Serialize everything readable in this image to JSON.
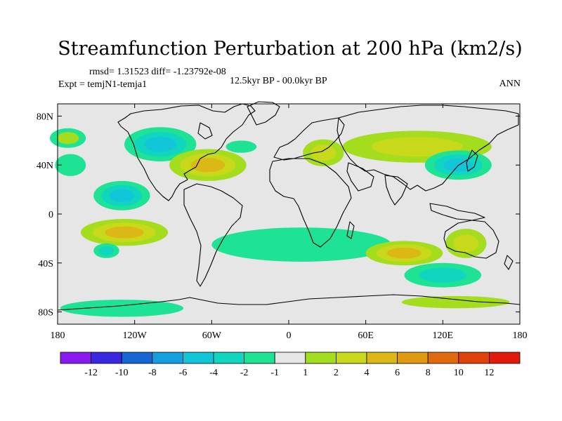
{
  "chart_data": {
    "type": "contour_map",
    "title": "Streamfunction Perturbation at 200 hPa (km2/s)",
    "stats": "rmsd= 1.31523 diff= -1.23792e-08",
    "experiment": "Expt = temjN1-temja1",
    "period": "12.5kyr BP - 00.0kyr BP",
    "season": "ANN",
    "xlabel": "",
    "ylabel": "",
    "xlim": [
      -180,
      180
    ],
    "ylim": [
      -90,
      90
    ],
    "x_ticks": [
      {
        "value": -180,
        "label": "180"
      },
      {
        "value": -120,
        "label": "120W"
      },
      {
        "value": -60,
        "label": "60W"
      },
      {
        "value": 0,
        "label": "0"
      },
      {
        "value": 60,
        "label": "60E"
      },
      {
        "value": 120,
        "label": "120E"
      },
      {
        "value": 180,
        "label": "180"
      }
    ],
    "y_ticks": [
      {
        "value": 80,
        "label": "80N"
      },
      {
        "value": 40,
        "label": "40N"
      },
      {
        "value": 0,
        "label": "0"
      },
      {
        "value": -40,
        "label": "40S"
      },
      {
        "value": -80,
        "label": "80S"
      }
    ],
    "colorbar": {
      "colors": [
        "#8a1bf0",
        "#3a27e0",
        "#1466d2",
        "#14a0e0",
        "#10c6d8",
        "#10d6c0",
        "#1ee394",
        "#e6e6e6",
        "#a4dc1e",
        "#c8d81a",
        "#dcb816",
        "#e09a12",
        "#e06a0e",
        "#e0420c",
        "#e21a0a"
      ],
      "labels": [
        {
          "label": "-12",
          "boundary": 1
        },
        {
          "label": "-10",
          "boundary": 2
        },
        {
          "label": "-8",
          "boundary": 3
        },
        {
          "label": "-6",
          "boundary": 4
        },
        {
          "label": "-4",
          "boundary": 5
        },
        {
          "label": "-2",
          "boundary": 6
        },
        {
          "label": "-1",
          "boundary": 7
        },
        {
          "label": "1",
          "boundary": 8
        },
        {
          "label": "2",
          "boundary": 9
        },
        {
          "label": "4",
          "boundary": 10
        },
        {
          "label": "6",
          "boundary": 11
        },
        {
          "label": "8",
          "boundary": 12
        },
        {
          "label": "10",
          "boundary": 13
        },
        {
          "label": "12",
          "boundary": 14
        }
      ]
    },
    "background_color": "#e6e6e6",
    "anomalies": [
      {
        "name": "anomaly-n-pacific",
        "lon": -172,
        "lat": 62,
        "rx": 14,
        "ry": 8,
        "levels": [
          -1,
          1
        ]
      },
      {
        "name": "anomaly-canada-low",
        "lon": -100,
        "lat": 57,
        "rx": 28,
        "ry": 14,
        "levels": [
          -4,
          -2,
          -1
        ]
      },
      {
        "name": "anomaly-n-atlantic-ridge",
        "lon": -63,
        "lat": 40,
        "rx": 30,
        "ry": 13,
        "levels": [
          1,
          2,
          4
        ]
      },
      {
        "name": "anomaly-n-atlantic-low",
        "lon": -37,
        "lat": 55,
        "rx": 12,
        "ry": 5,
        "levels": [
          -1
        ]
      },
      {
        "name": "anomaly-europe-high",
        "lon": 27,
        "lat": 50,
        "rx": 16,
        "ry": 11,
        "levels": [
          1,
          2
        ]
      },
      {
        "name": "anomaly-asia-high",
        "lon": 100,
        "lat": 55,
        "rx": 58,
        "ry": 13,
        "levels": [
          1,
          2
        ]
      },
      {
        "name": "anomaly-nw-pacific-low",
        "lon": 132,
        "lat": 40,
        "rx": 26,
        "ry": 12,
        "levels": [
          -4,
          -2,
          -1
        ]
      },
      {
        "name": "anomaly-ne-pacific-low",
        "lon": -170,
        "lat": 40,
        "rx": 12,
        "ry": 9,
        "levels": [
          -1
        ]
      },
      {
        "name": "anomaly-e-pacific-low",
        "lon": -130,
        "lat": 15,
        "rx": 22,
        "ry": 12,
        "levels": [
          -4,
          -2,
          -1
        ]
      },
      {
        "name": "anomaly-e-pacific-south-high",
        "lon": -128,
        "lat": -15,
        "rx": 34,
        "ry": 11,
        "levels": [
          1,
          2,
          4
        ]
      },
      {
        "name": "anomaly-south-atlantic-low",
        "lon": 10,
        "lat": -25,
        "rx": 70,
        "ry": 14,
        "levels": [
          -1
        ]
      },
      {
        "name": "anomaly-indian-ocean-high",
        "lon": 90,
        "lat": -32,
        "rx": 30,
        "ry": 10,
        "levels": [
          1,
          2,
          4
        ]
      },
      {
        "name": "anomaly-australia-high",
        "lon": 138,
        "lat": -24,
        "rx": 16,
        "ry": 12,
        "levels": [
          1,
          2
        ]
      },
      {
        "name": "anomaly-s-pacific-low",
        "lon": -142,
        "lat": -30,
        "rx": 10,
        "ry": 6,
        "levels": [
          -2,
          -1
        ]
      },
      {
        "name": "anomaly-s-indian-low",
        "lon": 120,
        "lat": -50,
        "rx": 30,
        "ry": 10,
        "levels": [
          -2,
          -1
        ]
      },
      {
        "name": "anomaly-southern-ocean-low",
        "lon": -130,
        "lat": -77,
        "rx": 48,
        "ry": 7,
        "levels": [
          -1
        ]
      },
      {
        "name": "anomaly-southern-ocean-high",
        "lon": 130,
        "lat": -72,
        "rx": 42,
        "ry": 5,
        "levels": [
          1
        ]
      }
    ]
  }
}
